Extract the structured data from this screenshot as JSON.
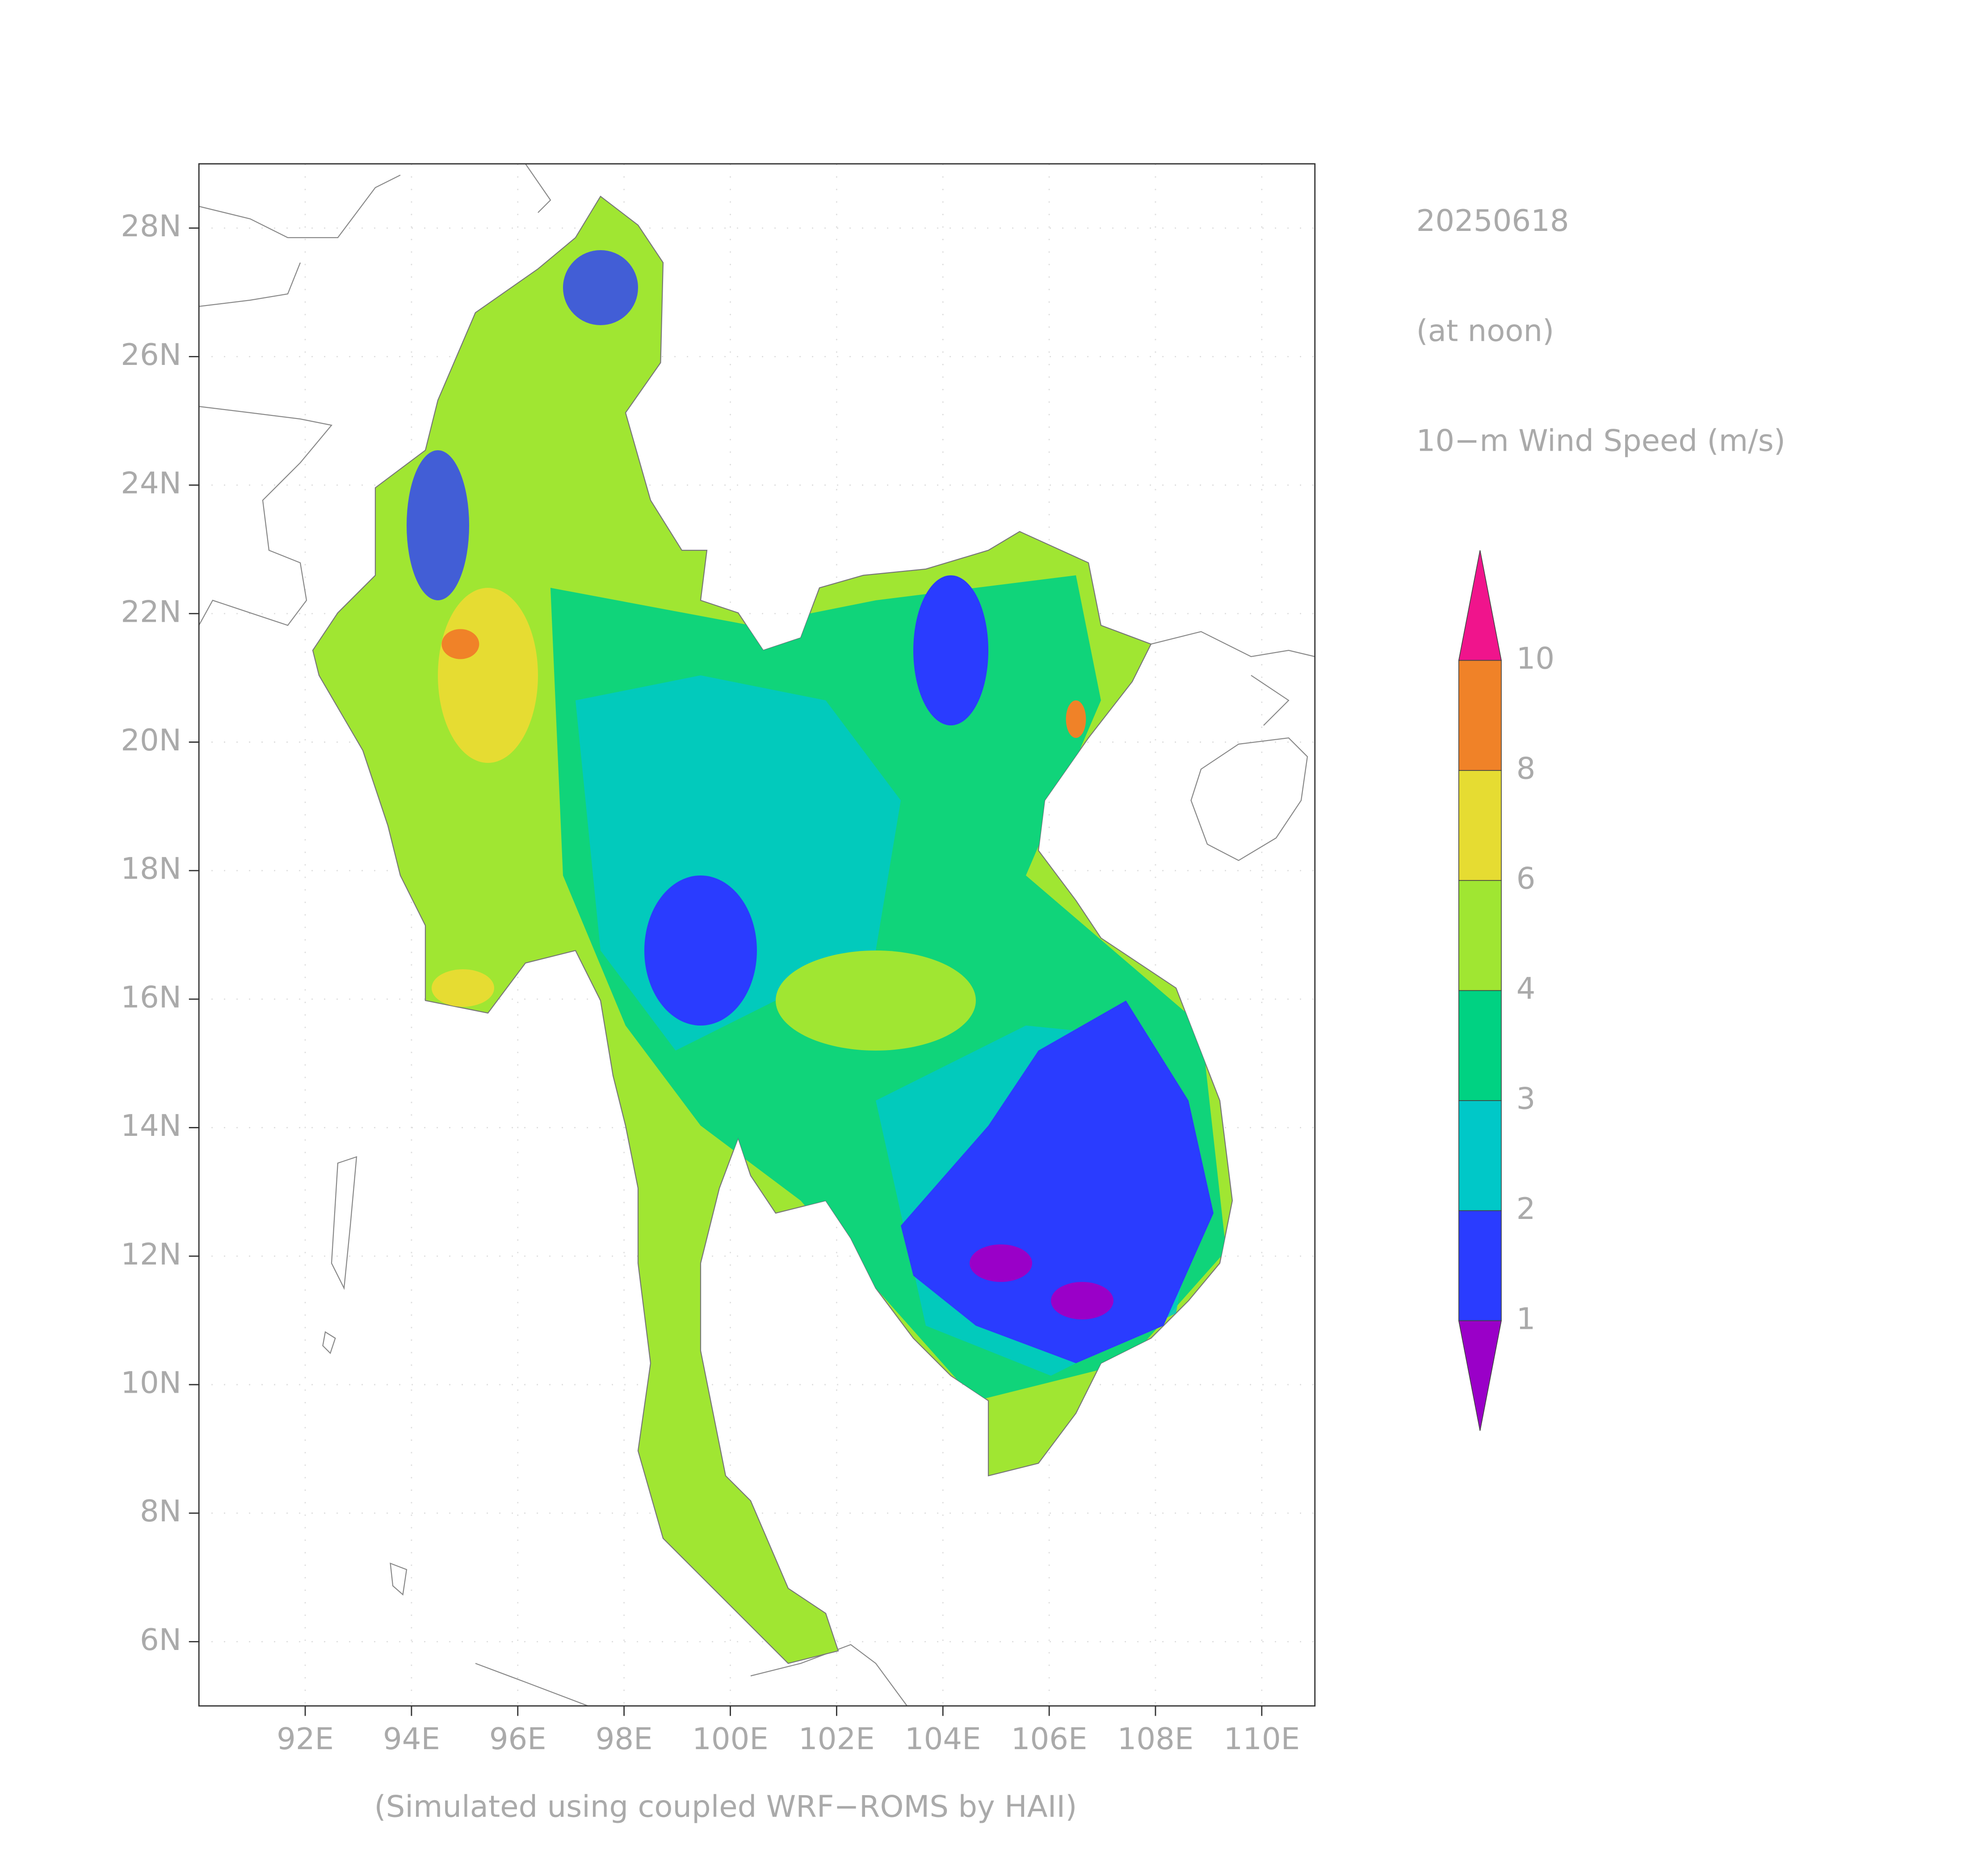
{
  "map": {
    "date": "20250618",
    "subtitle": "(at noon)",
    "variable": "10−m Wind Speed (m/s)",
    "credit": "(Simulated using coupled WRF−ROMS by HAII)",
    "xlim": [
      90,
      111
    ],
    "ylim": [
      5,
      29
    ],
    "xticks": [
      {
        "value": 92,
        "label": "92E"
      },
      {
        "value": 94,
        "label": "94E"
      },
      {
        "value": 96,
        "label": "96E"
      },
      {
        "value": 98,
        "label": "98E"
      },
      {
        "value": 100,
        "label": "100E"
      },
      {
        "value": 102,
        "label": "102E"
      },
      {
        "value": 104,
        "label": "104E"
      },
      {
        "value": 106,
        "label": "106E"
      },
      {
        "value": 108,
        "label": "108E"
      },
      {
        "value": 110,
        "label": "110E"
      }
    ],
    "yticks": [
      {
        "value": 6,
        "label": "6N"
      },
      {
        "value": 8,
        "label": "8N"
      },
      {
        "value": 10,
        "label": "10N"
      },
      {
        "value": 12,
        "label": "12N"
      },
      {
        "value": 14,
        "label": "14N"
      },
      {
        "value": 16,
        "label": "16N"
      },
      {
        "value": 18,
        "label": "18N"
      },
      {
        "value": 20,
        "label": "20N"
      },
      {
        "value": 22,
        "label": "22N"
      },
      {
        "value": 24,
        "label": "24N"
      },
      {
        "value": 26,
        "label": "26N"
      },
      {
        "value": 28,
        "label": "28N"
      }
    ],
    "grid": true,
    "colorbar": {
      "levels": [
        1,
        2,
        3,
        4,
        6,
        8,
        10
      ],
      "colors": [
        "#9a00c8",
        "#2a3cff",
        "#00c8c8",
        "#00d282",
        "#a0e632",
        "#e6dc32",
        "#f08228",
        "#f0148c"
      ]
    }
  }
}
